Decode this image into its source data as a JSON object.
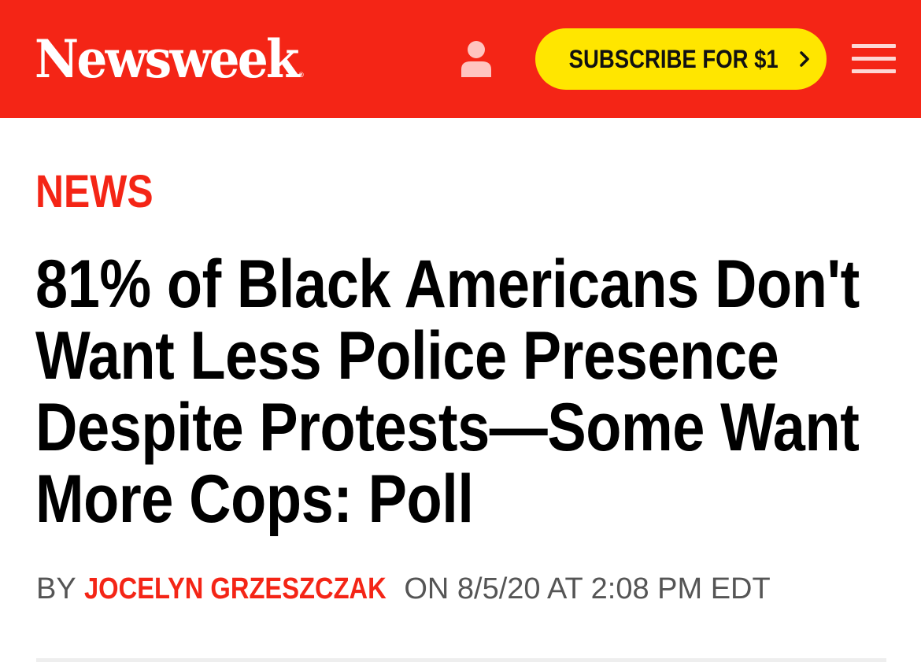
{
  "header": {
    "logo": "Newsweek",
    "logo_mark": "®",
    "account_icon": "user-icon",
    "subscribe_label": "SUBSCRIBE FOR $1",
    "subscribe_icon": "chevron-right-icon",
    "menu_icon": "hamburger-menu-icon",
    "colors": {
      "brand": "#f42516",
      "subscribe_bg": "#ffe600"
    }
  },
  "article": {
    "section": "NEWS",
    "headline": "81% of Black Americans Don't Want Less Police Presence Despite Protests—Some Want More Cops: Poll",
    "byline": {
      "prefix": "BY",
      "author": "JOCELYN GRZESZCZAK",
      "date_prefix": "ON",
      "date": "8/5/20 AT 2:08 PM EDT"
    }
  }
}
